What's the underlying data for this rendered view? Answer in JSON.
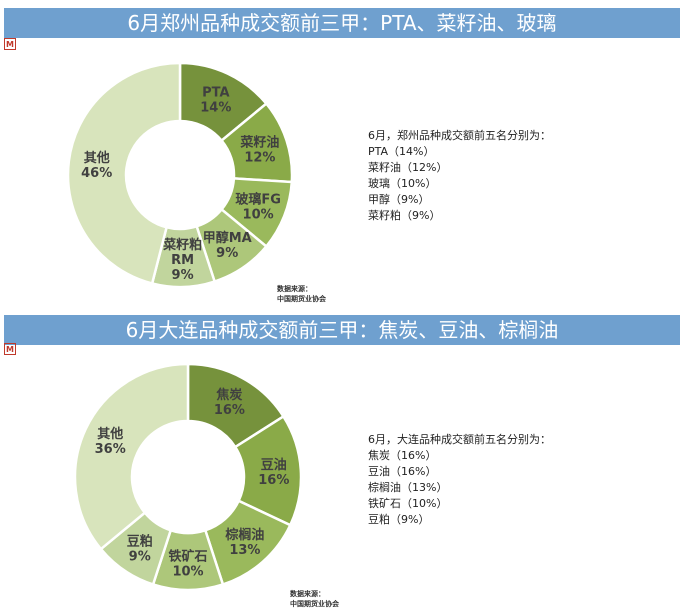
{
  "charts": [
    {
      "banner": "6月郑州品种成交额前三甲：PTA、菜籽油、玻璃",
      "notes": {
        "heading": "6月，郑州品种成交额前五名分别为：",
        "lines": [
          "PTA（14%）",
          "菜籽油（12%）",
          "玻璃（10%）",
          "甲醇（9%）",
          "菜籽粕（9%）"
        ]
      },
      "source": {
        "line1": "数据来源：",
        "line2": "中国期货业协会"
      }
    },
    {
      "banner": "6月大连品种成交额前三甲：焦炭、豆油、棕榈油",
      "notes": {
        "heading": "6月，大连品种成交额前五名分别为：",
        "lines": [
          "焦炭（16%）",
          "豆油（16%）",
          "棕榈油（13%）",
          "铁矿石（10%）",
          "豆粕（9%）"
        ]
      },
      "source": {
        "line1": "数据来源：",
        "line2": "中国期货业协会"
      }
    }
  ],
  "chart_data": [
    {
      "type": "pie",
      "title": "6月郑州品种成交额前三甲：PTA、菜籽油、玻璃",
      "slices": [
        {
          "name": "PTA",
          "value": 14,
          "label": "14%",
          "color": "#76923c"
        },
        {
          "name": "菜籽油",
          "value": 12,
          "label": "12%",
          "color": "#8aaa48"
        },
        {
          "name": "玻璃FG",
          "value": 10,
          "label": "10%",
          "color": "#9ab95c"
        },
        {
          "name": "甲醇MA",
          "value": 9,
          "label": "9%",
          "color": "#adc77a"
        },
        {
          "name": "菜籽粕\nRM",
          "value": 9,
          "label": "9%",
          "color": "#c1d59d"
        },
        {
          "name": "其他",
          "value": 46,
          "label": "46%",
          "color": "#d8e4bc"
        }
      ]
    },
    {
      "type": "pie",
      "title": "6月大连品种成交额前三甲：焦炭、豆油、棕榈油",
      "slices": [
        {
          "name": "焦炭",
          "value": 16,
          "label": "16%",
          "color": "#76923c"
        },
        {
          "name": "豆油",
          "value": 16,
          "label": "16%",
          "color": "#8aaa48"
        },
        {
          "name": "棕榈油",
          "value": 13,
          "label": "13%",
          "color": "#9ab95c"
        },
        {
          "name": "铁矿石",
          "value": 10,
          "label": "10%",
          "color": "#adc77a"
        },
        {
          "name": "豆粕",
          "value": 9,
          "label": "9%",
          "color": "#c1d59d"
        },
        {
          "name": "其他",
          "value": 36,
          "label": "36%",
          "color": "#d8e4bc"
        }
      ]
    }
  ]
}
